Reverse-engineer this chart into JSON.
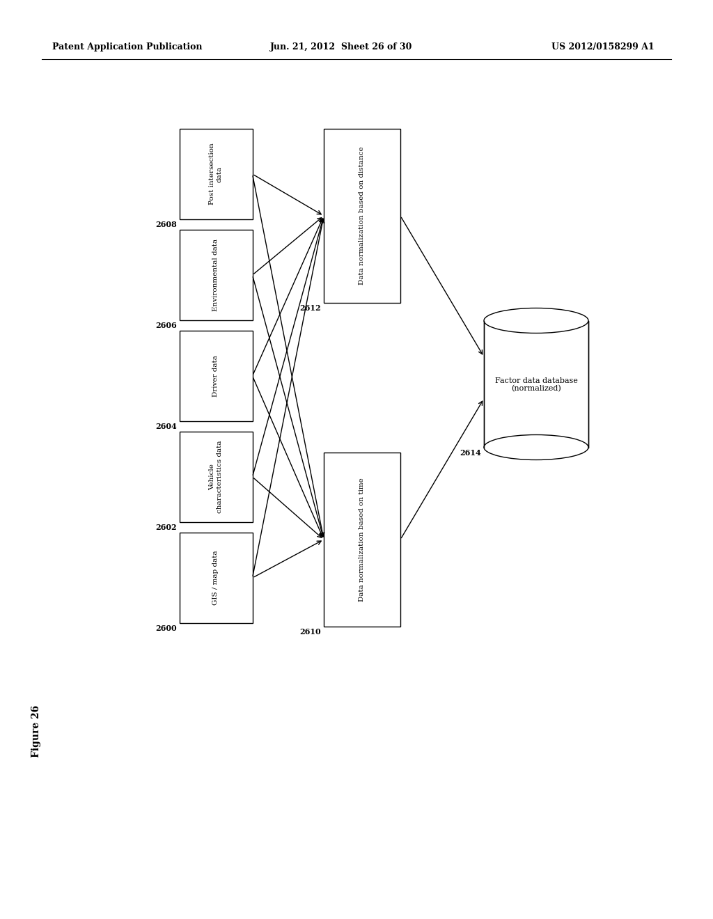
{
  "bg_color": "#ffffff",
  "header_left": "Patent Application Publication",
  "header_mid": "Jun. 21, 2012  Sheet 26 of 30",
  "header_right": "US 2012/0158299 A1",
  "figure_label": "Figure 26",
  "boxes_left": [
    {
      "label": "GIS / map data",
      "num": "2600"
    },
    {
      "label": "Vehicle\ncharacteristics data",
      "num": "2602"
    },
    {
      "label": "Driver data",
      "num": "2604"
    },
    {
      "label": "Environmental data",
      "num": "2606"
    },
    {
      "label": "Post intersection\ndata",
      "num": "2608"
    }
  ],
  "box_norm_dist": {
    "label": "Data normalization based on distance",
    "num": "2612"
  },
  "box_norm_time": {
    "label": "Data normalization based on time",
    "num": "2610"
  },
  "box_db": {
    "label": "Factor data database\n(normalized)",
    "num": "2614"
  }
}
